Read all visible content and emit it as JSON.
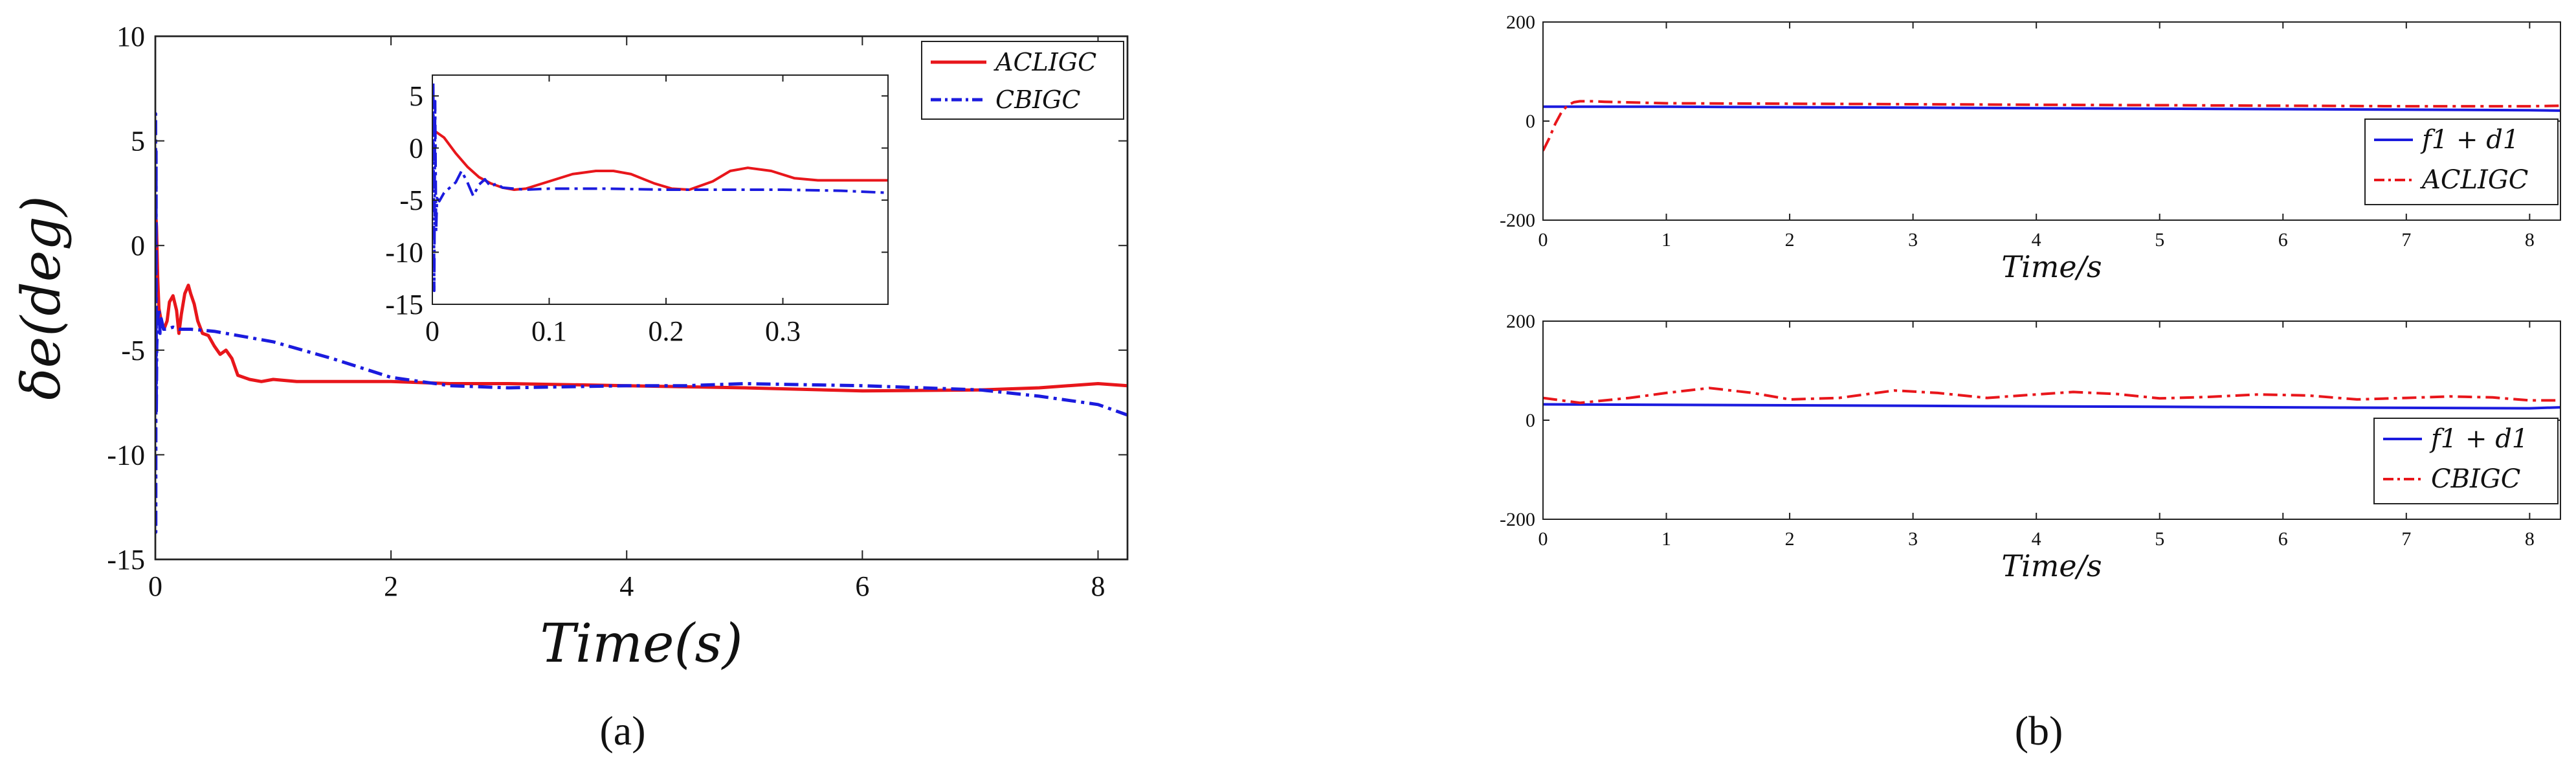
{
  "captions": [
    "(a)",
    "(b)"
  ],
  "colors": {
    "red": "#e8161b",
    "blue": "#1b1bde",
    "frame": "#222222"
  },
  "chart_data": [
    {
      "id": "a-main",
      "type": "line",
      "xlabel": "Time(s)",
      "ylabel": "δe(deg)",
      "xlim": [
        0,
        8.25
      ],
      "ylim": [
        -15,
        10
      ],
      "xticks": [
        0,
        2,
        4,
        6,
        8
      ],
      "yticks": [
        -15,
        -10,
        -5,
        0,
        5,
        10
      ],
      "legend_position": "top-right",
      "series": [
        {
          "name": "ACLIGC",
          "color": "#e8161b",
          "style": "solid",
          "x": [
            0,
            0.01,
            0.02,
            0.03,
            0.05,
            0.07,
            0.08,
            0.1,
            0.12,
            0.15,
            0.18,
            0.2,
            0.22,
            0.25,
            0.28,
            0.3,
            0.33,
            0.36,
            0.4,
            0.45,
            0.5,
            0.55,
            0.6,
            0.65,
            0.7,
            0.8,
            0.9,
            1.0,
            1.2,
            1.5,
            2.0,
            2.5,
            3.0,
            4.0,
            5.0,
            6.0,
            7.0,
            7.5,
            8.0,
            8.25
          ],
          "y": [
            1.8,
            0.9,
            -1.5,
            -3.0,
            -3.6,
            -3.9,
            -3.9,
            -3.6,
            -2.7,
            -2.4,
            -3.1,
            -4.2,
            -3.3,
            -2.3,
            -1.9,
            -2.3,
            -2.8,
            -3.6,
            -4.2,
            -4.3,
            -4.8,
            -5.2,
            -5.0,
            -5.4,
            -6.2,
            -6.4,
            -6.5,
            -6.4,
            -6.5,
            -6.5,
            -6.5,
            -6.6,
            -6.6,
            -6.7,
            -6.8,
            -6.95,
            -6.9,
            -6.8,
            -6.6,
            -6.7
          ]
        },
        {
          "name": "CBIGC",
          "color": "#1b1bde",
          "style": "dashdot",
          "x": [
            0,
            0.002,
            0.004,
            0.006,
            0.008,
            0.012,
            0.02,
            0.03,
            0.04,
            0.05,
            0.07,
            0.1,
            0.15,
            0.2,
            0.3,
            0.5,
            1.0,
            1.5,
            2.0,
            2.5,
            3.0,
            4.0,
            4.5,
            5.0,
            6.0,
            7.0,
            7.5,
            8.0,
            8.25
          ],
          "y": [
            -4,
            6.3,
            -13.7,
            4.5,
            -8.0,
            -4.8,
            -3.6,
            -3.0,
            -4.2,
            -3.5,
            -4.0,
            -4.0,
            -3.9,
            -4.0,
            -4.0,
            -4.1,
            -4.6,
            -5.4,
            -6.3,
            -6.7,
            -6.8,
            -6.7,
            -6.7,
            -6.6,
            -6.7,
            -6.9,
            -7.2,
            -7.6,
            -8.1
          ]
        }
      ]
    },
    {
      "id": "a-inset",
      "type": "line",
      "xlim": [
        0,
        0.39
      ],
      "ylim": [
        -15,
        7
      ],
      "xticks": [
        0,
        0.1,
        0.2,
        0.3
      ],
      "ytick_values": [
        -15,
        -10,
        -5,
        0,
        5
      ],
      "ytick_labels": [
        "-15",
        "-10",
        "-5",
        "0",
        "5"
      ],
      "series": [
        {
          "name": "ACLIGC",
          "color": "#e8161b",
          "style": "solid",
          "x": [
            0,
            0.01,
            0.02,
            0.03,
            0.04,
            0.05,
            0.06,
            0.07,
            0.08,
            0.1,
            0.12,
            0.14,
            0.155,
            0.17,
            0.19,
            0.205,
            0.22,
            0.24,
            0.255,
            0.27,
            0.29,
            0.31,
            0.33,
            0.36,
            0.39
          ],
          "y": [
            1.8,
            1.0,
            -0.5,
            -1.8,
            -2.8,
            -3.4,
            -3.8,
            -4.0,
            -3.9,
            -3.2,
            -2.5,
            -2.2,
            -2.2,
            -2.5,
            -3.4,
            -3.9,
            -4.0,
            -3.2,
            -2.2,
            -1.9,
            -2.2,
            -2.9,
            -3.1,
            -3.1,
            -3.1
          ]
        },
        {
          "name": "CBIGC",
          "color": "#1b1bde",
          "style": "dashdot",
          "x": [
            0,
            0.0008,
            0.0016,
            0.0024,
            0.0032,
            0.004,
            0.006,
            0.01,
            0.015,
            0.02,
            0.025,
            0.03,
            0.035,
            0.04,
            0.045,
            0.05,
            0.055,
            0.06,
            0.07,
            0.08,
            0.1,
            0.15,
            0.2,
            0.25,
            0.3,
            0.35,
            0.39
          ],
          "y": [
            -4,
            6.3,
            -13.7,
            4.5,
            -8.0,
            -4.8,
            -5.1,
            -4.3,
            -3.8,
            -3.3,
            -2.2,
            -3.3,
            -4.6,
            -3.5,
            -3.0,
            -3.7,
            -3.4,
            -3.8,
            -3.9,
            -4.0,
            -3.9,
            -3.9,
            -4.0,
            -4.0,
            -4.0,
            -4.1,
            -4.3
          ]
        }
      ]
    },
    {
      "id": "b-top",
      "type": "line",
      "xlabel": "Time/s",
      "xlim": [
        0,
        8.25
      ],
      "ylim": [
        -200,
        200
      ],
      "xticks": [
        0,
        1,
        2,
        3,
        4,
        5,
        6,
        7,
        8
      ],
      "yticks": [
        -200,
        0,
        200
      ],
      "legend_position": "bottom-right",
      "series": [
        {
          "name": "f1 + d1",
          "color": "#1b1bde",
          "style": "solid",
          "x": [
            0,
            1,
            2,
            3,
            4,
            5,
            6,
            7,
            8,
            8.25
          ],
          "y": [
            29,
            29,
            28,
            27,
            26,
            25,
            24,
            23,
            22,
            21
          ]
        },
        {
          "name": "ACLIGC",
          "color": "#e8161b",
          "style": "dashdot",
          "x": [
            0,
            0.05,
            0.1,
            0.15,
            0.2,
            0.25,
            0.3,
            0.4,
            0.5,
            1,
            2,
            3,
            4,
            5,
            6,
            7,
            8,
            8.25
          ],
          "y": [
            -60,
            -35,
            -5,
            18,
            32,
            38,
            40,
            40,
            39,
            36,
            35,
            34,
            33,
            32,
            31,
            30,
            30,
            31
          ]
        }
      ]
    },
    {
      "id": "b-bottom",
      "type": "line",
      "xlabel": "Time/s",
      "xlim": [
        0,
        8.25
      ],
      "ylim": [
        -200,
        200
      ],
      "xticks": [
        0,
        1,
        2,
        3,
        4,
        5,
        6,
        7,
        8
      ],
      "yticks": [
        -200,
        0,
        200
      ],
      "legend_position": "bottom-right",
      "series": [
        {
          "name": "f1 + d1",
          "color": "#1b1bde",
          "style": "solid",
          "x": [
            0,
            1,
            2,
            3,
            4,
            5,
            6,
            7,
            8,
            8.25
          ],
          "y": [
            32,
            31,
            30,
            29,
            28,
            27,
            26,
            25,
            24,
            26
          ]
        },
        {
          "name": "CBIGC",
          "color": "#e8161b",
          "style": "dashdot",
          "x": [
            0,
            0.3,
            0.7,
            1.0,
            1.35,
            1.7,
            2.0,
            2.4,
            2.85,
            3.2,
            3.6,
            4.0,
            4.3,
            4.65,
            5.0,
            5.4,
            5.8,
            6.2,
            6.6,
            7.0,
            7.35,
            7.7,
            8.0,
            8.25
          ],
          "y": [
            45,
            35,
            45,
            55,
            65,
            55,
            42,
            45,
            60,
            55,
            45,
            52,
            57,
            53,
            44,
            47,
            52,
            50,
            42,
            45,
            48,
            46,
            40,
            40
          ]
        }
      ]
    }
  ]
}
